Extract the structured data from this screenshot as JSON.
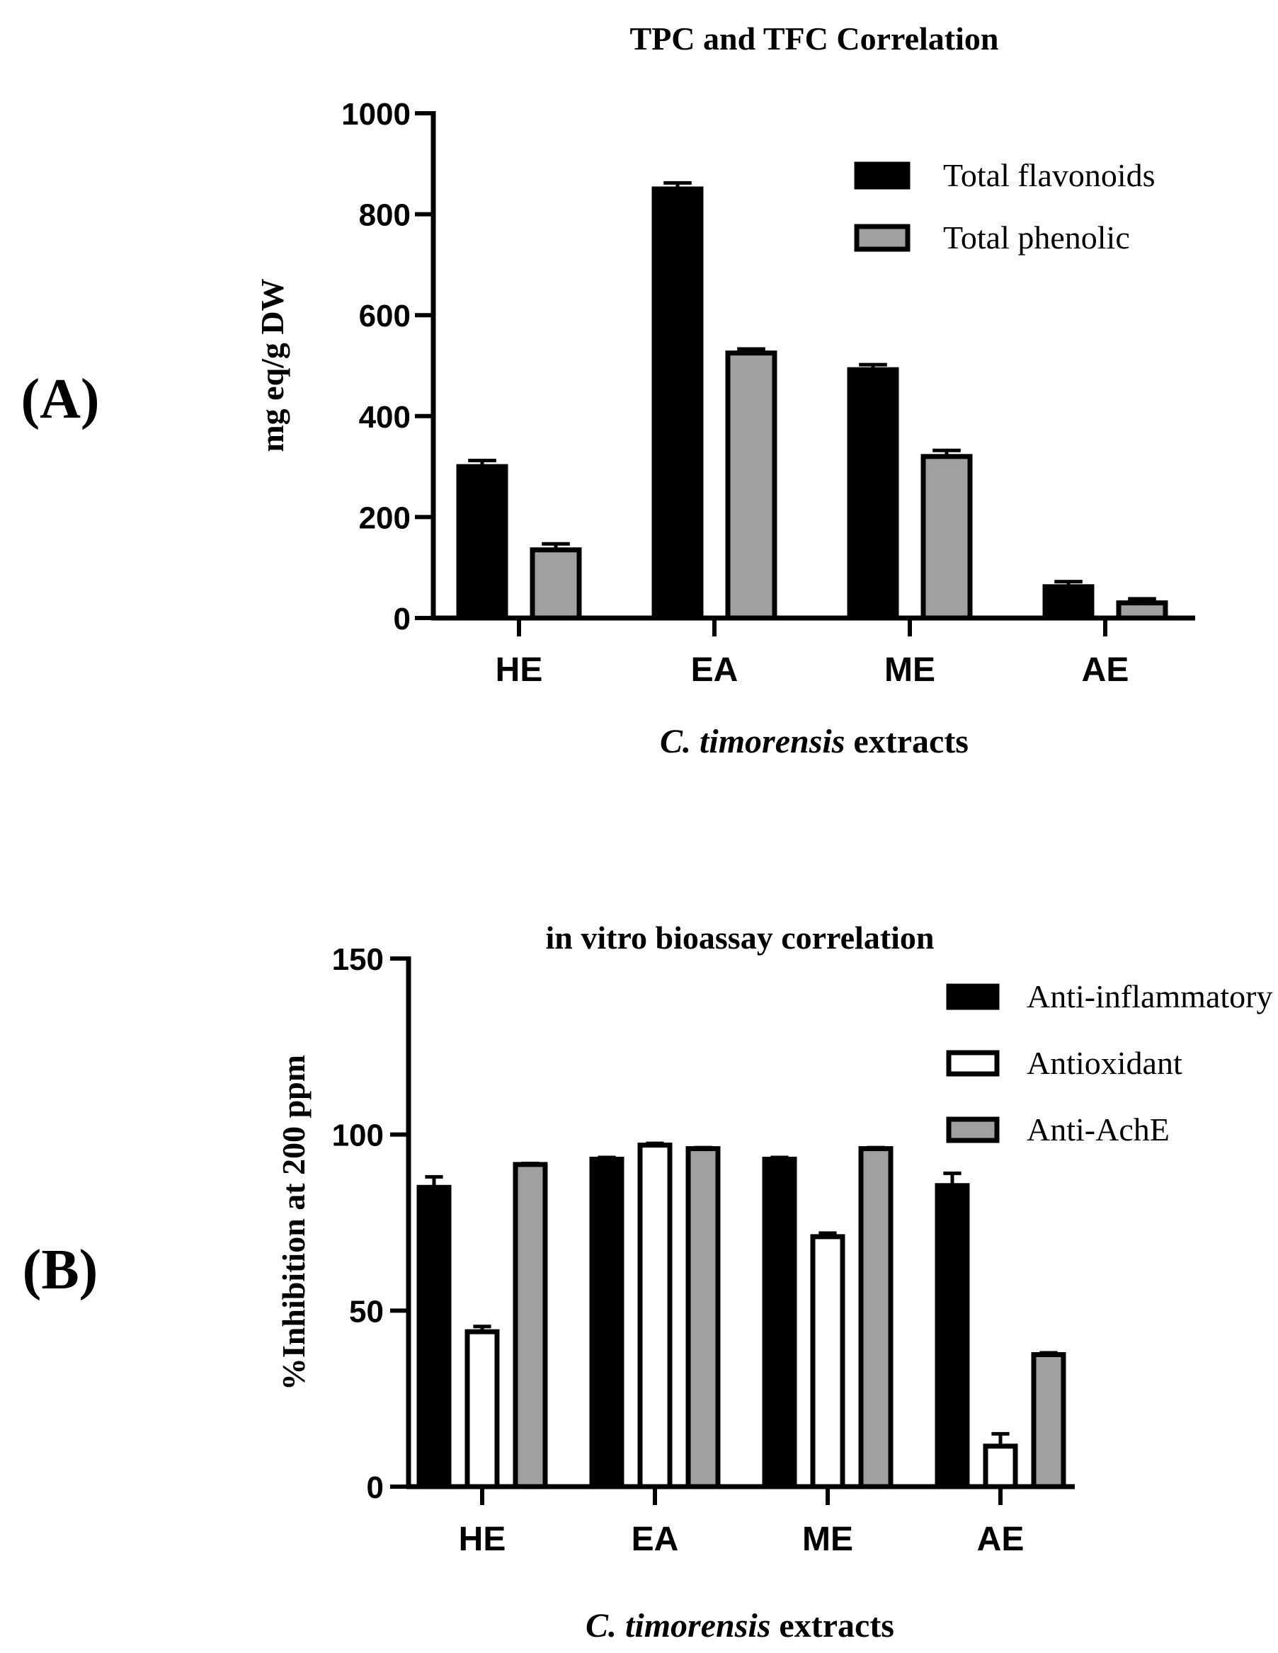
{
  "chart_data": [
    {
      "type": "bar",
      "panel_label": "(A)",
      "title": "TPC and TFC Correlation",
      "ylabel": "mg eq/g DW",
      "xlabel_italic": "C. timorensis",
      "xlabel_rest": " extracts",
      "ylim": [
        0,
        1000
      ],
      "yticks": [
        0,
        200,
        400,
        600,
        800,
        1000
      ],
      "categories": [
        "HE",
        "EA",
        "ME",
        "AE"
      ],
      "legend_position": "top-right",
      "series": [
        {
          "name": "Total flavonoids",
          "values": [
            300,
            850,
            492,
            62
          ],
          "errors": [
            12,
            12,
            10,
            10
          ],
          "color": "#000000",
          "style": "solid"
        },
        {
          "name": "Total phenolic",
          "values": [
            135,
            525,
            320,
            30
          ],
          "errors": [
            12,
            8,
            12,
            8
          ],
          "color": "#a0a0a0",
          "style": "gray"
        }
      ]
    },
    {
      "type": "bar",
      "panel_label": "(B)",
      "title": "in vitro bioassay correlation",
      "ylabel": "%Inhibition at 200 ppm",
      "xlabel_italic": "C. timorensis",
      "xlabel_rest": " extracts",
      "ylim": [
        0,
        150
      ],
      "yticks": [
        0,
        50,
        100,
        150
      ],
      "categories": [
        "HE",
        "EA",
        "ME",
        "AE"
      ],
      "legend_position": "top-right",
      "series": [
        {
          "name": "Anti-inflammatory",
          "values": [
            85,
            93,
            93,
            85.5
          ],
          "errors": [
            3,
            0.5,
            0.5,
            3.5
          ],
          "color": "#000000",
          "style": "solid"
        },
        {
          "name": "Antioxidant",
          "values": [
            44,
            97,
            71,
            11.5
          ],
          "errors": [
            1.5,
            0.5,
            1,
            3.5
          ],
          "color": "#ffffff",
          "style": "hollow"
        },
        {
          "name": "Anti-AchE",
          "values": [
            91.5,
            96,
            96,
            37.5
          ],
          "errors": [
            0.3,
            0.3,
            0.3,
            0.5
          ],
          "color": "#a0a0a0",
          "style": "gray"
        }
      ]
    }
  ]
}
